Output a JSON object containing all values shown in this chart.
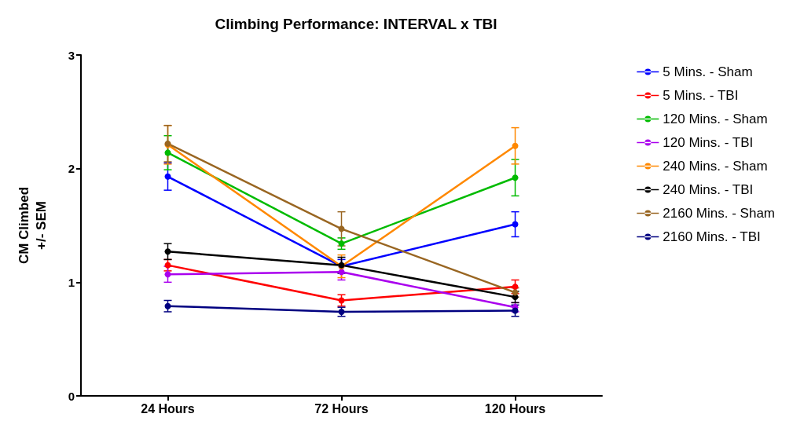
{
  "chart_data": {
    "type": "line",
    "title": "Climbing Performance: INTERVAL x TBI",
    "ylabel": "CM Climbed\n+/- SEM",
    "categories": [
      "24 Hours",
      "72 Hours",
      "120 Hours"
    ],
    "ylim": [
      0,
      3
    ],
    "yticks": [
      0,
      1,
      2,
      3
    ],
    "grid": false,
    "legend": "right",
    "marker": "circle",
    "line_style": "solid",
    "series": [
      {
        "name": "5 Mins. - Sham",
        "color": "#0000ff",
        "values": [
          1.93,
          1.14,
          1.51
        ],
        "errors": [
          0.12,
          0.06,
          0.11
        ]
      },
      {
        "name": "5 Mins. - TBI",
        "color": "#ff0000",
        "values": [
          1.15,
          0.84,
          0.96
        ],
        "errors": [
          0.05,
          0.05,
          0.06
        ]
      },
      {
        "name": "120 Mins. - Sham",
        "color": "#00bb00",
        "values": [
          2.14,
          1.34,
          1.92
        ],
        "errors": [
          0.15,
          0.05,
          0.16
        ]
      },
      {
        "name": "120 Mins. - TBI",
        "color": "#aa00ee",
        "values": [
          1.07,
          1.09,
          0.78
        ],
        "errors": [
          0.07,
          0.07,
          0.04
        ]
      },
      {
        "name": "240 Mins. - Sham",
        "color": "#ff8800",
        "values": [
          2.21,
          1.14,
          2.2
        ],
        "errors": [
          0.17,
          0.1,
          0.16
        ]
      },
      {
        "name": "240 Mins. - TBI",
        "color": "#000000",
        "values": [
          1.27,
          1.15,
          0.87
        ],
        "errors": [
          0.07,
          0.07,
          0.05
        ]
      },
      {
        "name": "2160 Mins. - Sham",
        "color": "#996622",
        "values": [
          2.22,
          1.47,
          0.91
        ],
        "errors": [
          0.16,
          0.15,
          0.04
        ]
      },
      {
        "name": "2160 Mins. - TBI",
        "color": "#000080",
        "values": [
          0.79,
          0.74,
          0.75
        ],
        "errors": [
          0.05,
          0.04,
          0.05
        ]
      }
    ]
  }
}
